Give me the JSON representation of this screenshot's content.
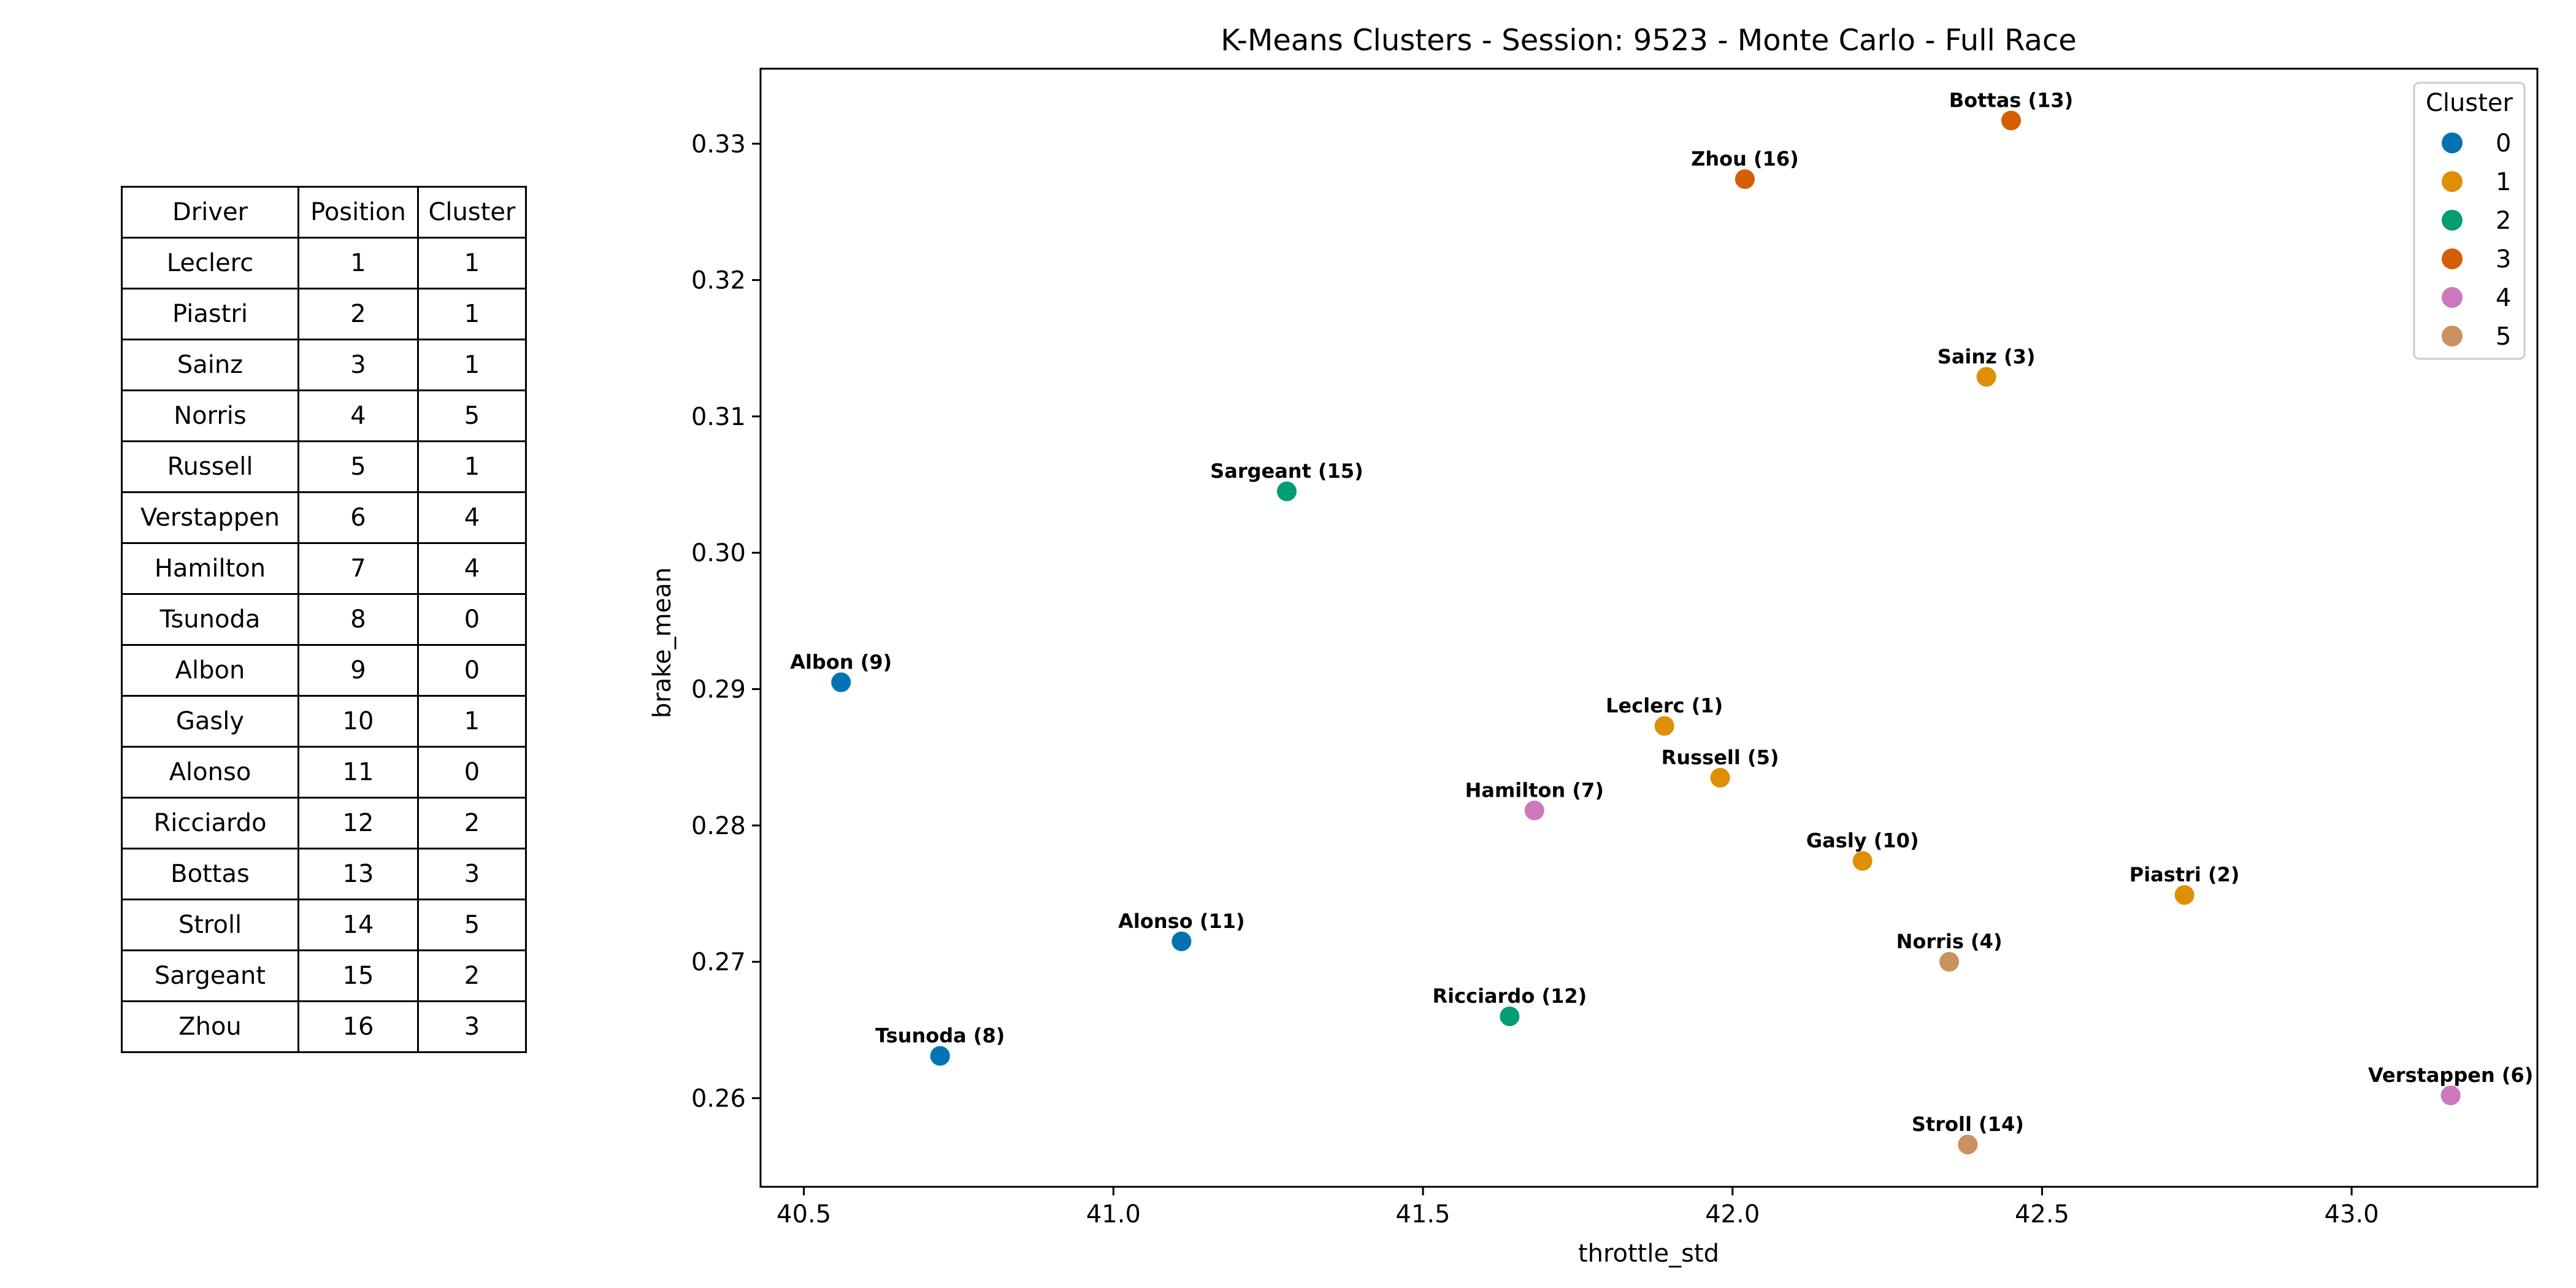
{
  "table": {
    "headers": [
      "Driver",
      "Position",
      "Cluster"
    ],
    "rows": [
      [
        "Leclerc",
        "1",
        "1"
      ],
      [
        "Piastri",
        "2",
        "1"
      ],
      [
        "Sainz",
        "3",
        "1"
      ],
      [
        "Norris",
        "4",
        "5"
      ],
      [
        "Russell",
        "5",
        "1"
      ],
      [
        "Verstappen",
        "6",
        "4"
      ],
      [
        "Hamilton",
        "7",
        "4"
      ],
      [
        "Tsunoda",
        "8",
        "0"
      ],
      [
        "Albon",
        "9",
        "0"
      ],
      [
        "Gasly",
        "10",
        "1"
      ],
      [
        "Alonso",
        "11",
        "0"
      ],
      [
        "Ricciardo",
        "12",
        "2"
      ],
      [
        "Bottas",
        "13",
        "3"
      ],
      [
        "Stroll",
        "14",
        "5"
      ],
      [
        "Sargeant",
        "15",
        "2"
      ],
      [
        "Zhou",
        "16",
        "3"
      ]
    ]
  },
  "chart_data": {
    "type": "scatter",
    "title": "K-Means Clusters - Session: 9523 - Monte Carlo - Full Race",
    "xlabel": "throttle_std",
    "ylabel": "brake_mean",
    "xlim": [
      40.43,
      43.3
    ],
    "ylim": [
      0.2535,
      0.3355
    ],
    "xticks": [
      40.5,
      41.0,
      41.5,
      42.0,
      42.5,
      43.0
    ],
    "xtick_labels": [
      "40.5",
      "41.0",
      "41.5",
      "42.0",
      "42.5",
      "43.0"
    ],
    "yticks": [
      0.26,
      0.27,
      0.28,
      0.29,
      0.3,
      0.31,
      0.32,
      0.33
    ],
    "ytick_labels": [
      "0.26",
      "0.27",
      "0.28",
      "0.29",
      "0.30",
      "0.31",
      "0.32",
      "0.33"
    ],
    "grid": false,
    "legend": {
      "title": "Cluster",
      "placement": "top-right",
      "entries": [
        {
          "label": "0",
          "color": "#0173b2"
        },
        {
          "label": "1",
          "color": "#de8f05"
        },
        {
          "label": "2",
          "color": "#029e73"
        },
        {
          "label": "3",
          "color": "#d55e00"
        },
        {
          "label": "4",
          "color": "#cc78bc"
        },
        {
          "label": "5",
          "color": "#ca9161"
        }
      ]
    },
    "points": [
      {
        "label": "Leclerc (1)",
        "x": 41.89,
        "y": 0.2873,
        "cluster": 1
      },
      {
        "label": "Piastri (2)",
        "x": 42.73,
        "y": 0.2749,
        "cluster": 1
      },
      {
        "label": "Sainz (3)",
        "x": 42.41,
        "y": 0.3129,
        "cluster": 1
      },
      {
        "label": "Norris (4)",
        "x": 42.35,
        "y": 0.27,
        "cluster": 5
      },
      {
        "label": "Russell (5)",
        "x": 41.98,
        "y": 0.2835,
        "cluster": 1
      },
      {
        "label": "Verstappen (6)",
        "x": 43.16,
        "y": 0.2602,
        "cluster": 4
      },
      {
        "label": "Hamilton (7)",
        "x": 41.68,
        "y": 0.2811,
        "cluster": 4
      },
      {
        "label": "Tsunoda (8)",
        "x": 40.72,
        "y": 0.2631,
        "cluster": 0
      },
      {
        "label": "Albon (9)",
        "x": 40.56,
        "y": 0.2905,
        "cluster": 0
      },
      {
        "label": "Gasly (10)",
        "x": 42.21,
        "y": 0.2774,
        "cluster": 1
      },
      {
        "label": "Alonso (11)",
        "x": 41.11,
        "y": 0.2715,
        "cluster": 0
      },
      {
        "label": "Ricciardo (12)",
        "x": 41.64,
        "y": 0.266,
        "cluster": 2
      },
      {
        "label": "Bottas (13)",
        "x": 42.45,
        "y": 0.3317,
        "cluster": 3
      },
      {
        "label": "Stroll (14)",
        "x": 42.38,
        "y": 0.2566,
        "cluster": 5
      },
      {
        "label": "Sargeant (15)",
        "x": 41.28,
        "y": 0.3045,
        "cluster": 2
      },
      {
        "label": "Zhou (16)",
        "x": 42.02,
        "y": 0.3274,
        "cluster": 3
      }
    ]
  }
}
